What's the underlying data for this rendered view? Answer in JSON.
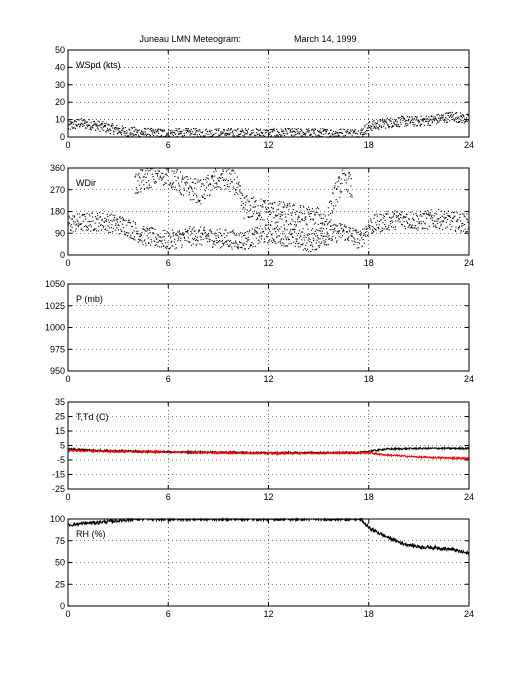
{
  "title": "Juneau LMN Meteogram:",
  "date": "March 14, 1999",
  "x_ticks": [
    0,
    6,
    12,
    18,
    24
  ],
  "xlim": [
    0,
    24
  ],
  "colors": {
    "axis": "#000000",
    "series_black": "#000000",
    "series_red": "#ff0000"
  },
  "chart_data": [
    {
      "type": "scatter",
      "label": "WSpd (kts)",
      "ylim": [
        0,
        50
      ],
      "y_ticks": [
        0,
        10,
        20,
        30,
        40,
        50
      ],
      "grid": true,
      "series": [
        {
          "color": "#000000",
          "style": "dots",
          "segments": [
            [
              0,
              6
            ],
            [
              0.7,
              8
            ],
            [
              1.5,
              7
            ],
            [
              2.5,
              5
            ],
            [
              3.5,
              3
            ],
            [
              5,
              2
            ],
            [
              6,
              2
            ],
            [
              9,
              2
            ],
            [
              12,
              2
            ],
            [
              15,
              2
            ],
            [
              17.5,
              2
            ],
            [
              18,
              6
            ],
            [
              19,
              8
            ],
            [
              20,
              9
            ],
            [
              21,
              9
            ],
            [
              22,
              10
            ],
            [
              23,
              12
            ],
            [
              24,
              10
            ]
          ],
          "spread": 3
        }
      ]
    },
    {
      "type": "scatter",
      "label": "WDir",
      "ylim": [
        0,
        360
      ],
      "y_ticks": [
        0,
        90,
        180,
        270,
        360
      ],
      "grid": true,
      "series": [
        {
          "color": "#000000",
          "style": "dots",
          "segments": [
            [
              0,
              130
            ],
            [
              2,
              140
            ],
            [
              3.5,
              120
            ],
            [
              4.5,
              80
            ],
            [
              6,
              60
            ],
            [
              7.5,
              80
            ],
            [
              9,
              70
            ],
            [
              10.5,
              60
            ],
            [
              12,
              90
            ],
            [
              13.5,
              70
            ],
            [
              14.5,
              50
            ],
            [
              15.5,
              80
            ],
            [
              16.5,
              100
            ],
            [
              17.5,
              60
            ],
            [
              18,
              120
            ],
            [
              19,
              140
            ],
            [
              20,
              150
            ],
            [
              21,
              140
            ],
            [
              22,
              150
            ],
            [
              23,
              140
            ],
            [
              24,
              130
            ]
          ],
          "spread": 40
        },
        {
          "color": "#000000",
          "style": "dots",
          "segments": [
            [
              4,
              290
            ],
            [
              5,
              330
            ],
            [
              6,
              340
            ],
            [
              7,
              280
            ],
            [
              8,
              260
            ],
            [
              9,
              320
            ],
            [
              10,
              300
            ],
            [
              10.5,
              200
            ],
            [
              15.5,
              140
            ],
            [
              16,
              250
            ],
            [
              16.6,
              330
            ],
            [
              17,
              270
            ]
          ],
          "spread": 50
        }
      ]
    },
    {
      "type": "line",
      "label": "P (mb)",
      "ylim": [
        950,
        1050
      ],
      "y_ticks": [
        950,
        975,
        1000,
        1025,
        1050
      ],
      "grid": true,
      "series": []
    },
    {
      "type": "line",
      "label": "T,Td (C)",
      "ylim": [
        -25,
        35
      ],
      "y_ticks": [
        -25,
        -15,
        -5,
        5,
        15,
        25,
        35
      ],
      "grid": true,
      "series": [
        {
          "color": "#000000",
          "style": "line",
          "segments": [
            [
              0,
              2.5
            ],
            [
              2,
              1.5
            ],
            [
              6,
              0.5
            ],
            [
              12,
              0
            ],
            [
              17.5,
              0
            ],
            [
              18,
              1
            ],
            [
              19,
              2.5
            ],
            [
              21,
              3
            ],
            [
              24,
              3
            ]
          ],
          "spread": 0.6
        },
        {
          "color": "#ff0000",
          "style": "line",
          "segments": [
            [
              0,
              1.5
            ],
            [
              2,
              1
            ],
            [
              6,
              0.5
            ],
            [
              12,
              -0.5
            ],
            [
              17.5,
              0
            ],
            [
              18,
              0
            ],
            [
              19,
              -1.5
            ],
            [
              21,
              -3
            ],
            [
              24,
              -4
            ]
          ],
          "spread": 0.6
        }
      ]
    },
    {
      "type": "line",
      "label": "RH (%)",
      "ylim": [
        0,
        100
      ],
      "y_ticks": [
        0,
        25,
        50,
        75,
        100
      ],
      "grid": true,
      "series": [
        {
          "color": "#000000",
          "style": "line",
          "segments": [
            [
              0,
              93
            ],
            [
              1,
              95
            ],
            [
              3,
              98
            ],
            [
              4,
              100
            ],
            [
              6,
              100
            ],
            [
              17.5,
              100
            ],
            [
              18,
              90
            ],
            [
              19,
              80
            ],
            [
              20,
              72
            ],
            [
              21,
              68
            ],
            [
              22,
              67
            ],
            [
              23,
              65
            ],
            [
              24,
              60
            ]
          ],
          "spread": 2
        }
      ]
    }
  ]
}
